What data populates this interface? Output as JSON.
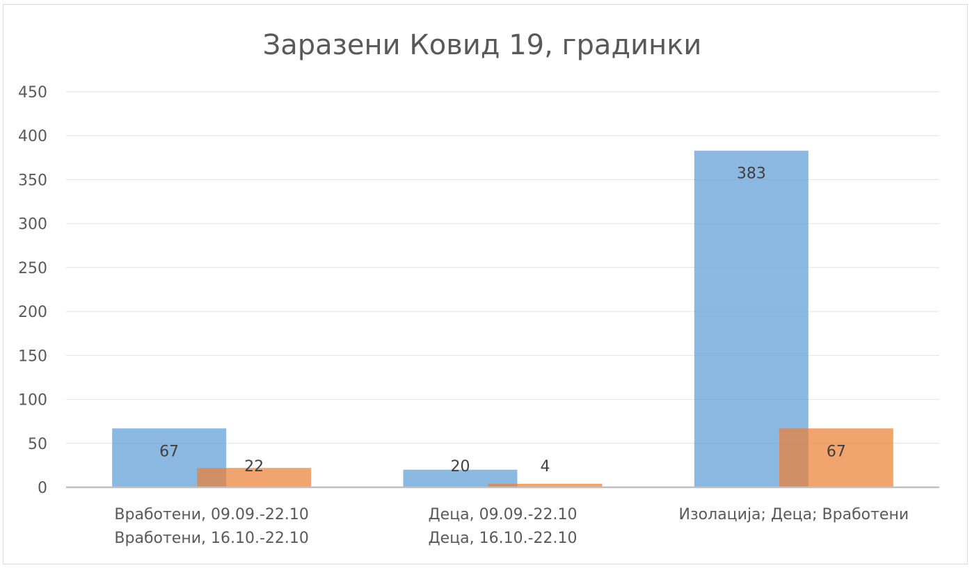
{
  "chart_data": {
    "type": "bar",
    "title": "Заразени Ковид 19, градинки",
    "categories": [
      [
        "Вработени, 09.09.-22.10",
        "Вработени, 16.10.-22.10"
      ],
      [
        "Деца, 09.09.-22.10",
        "Деца, 16.10.-22.10"
      ],
      [
        "Изолација; Деца; Вработени"
      ]
    ],
    "series": [
      {
        "values": [
          67,
          20,
          383
        ],
        "color": "#5b9bd5"
      },
      {
        "values": [
          22,
          4,
          67
        ],
        "color": "#ed7d31"
      }
    ],
    "ylim": [
      0,
      450
    ],
    "yticks": [
      0,
      50,
      100,
      150,
      200,
      250,
      300,
      350,
      400,
      450
    ],
    "grid": true,
    "legend": "none",
    "data_labels": true,
    "bar_overlap": "partial",
    "bar_opacity": 0.7
  }
}
